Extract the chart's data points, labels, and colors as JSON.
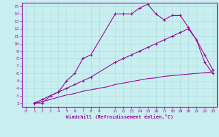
{
  "xlabel": "Windchill (Refroidissement éolien,°C)",
  "bg_color": "#c8eef0",
  "grid_color": "#b0dde0",
  "line_color": "#990099",
  "xlim": [
    -0.5,
    23.5
  ],
  "ylim": [
    1.5,
    15.5
  ],
  "xticks": [
    0,
    1,
    2,
    3,
    4,
    5,
    6,
    7,
    8,
    9,
    11,
    12,
    13,
    14,
    15,
    16,
    17,
    18,
    19,
    20,
    21,
    22,
    23
  ],
  "yticks": [
    2,
    3,
    4,
    5,
    6,
    7,
    8,
    9,
    10,
    11,
    12,
    13,
    14,
    15
  ],
  "line1_x": [
    1,
    2,
    3,
    4,
    5,
    6,
    7,
    8,
    11,
    12,
    13,
    14,
    15,
    16,
    17,
    18,
    19,
    20,
    21,
    22,
    23
  ],
  "line1_y": [
    2,
    2,
    3,
    3.5,
    5,
    6,
    8,
    8.5,
    14,
    14,
    14,
    14.8,
    15.3,
    14,
    13.2,
    13.8,
    13.8,
    12.2,
    10.5,
    7.5,
    6
  ],
  "line2_x": [
    1,
    2,
    3,
    4,
    5,
    6,
    7,
    8,
    11,
    12,
    13,
    14,
    15,
    16,
    17,
    18,
    19,
    20,
    21,
    22,
    23
  ],
  "line2_y": [
    2,
    2.5,
    3,
    3.5,
    4,
    4.5,
    5,
    5.5,
    7.5,
    8,
    8.5,
    9,
    9.5,
    10,
    10.5,
    11,
    11.5,
    12,
    10.5,
    8.5,
    6.5
  ],
  "line3_x": [
    1,
    2,
    3,
    4,
    5,
    6,
    7,
    8,
    9,
    10,
    11,
    12,
    13,
    14,
    15,
    16,
    17,
    18,
    19,
    20,
    21,
    22,
    23
  ],
  "line3_y": [
    2,
    2.2,
    2.5,
    2.8,
    3.1,
    3.3,
    3.6,
    3.8,
    4.0,
    4.2,
    4.5,
    4.7,
    4.9,
    5.1,
    5.3,
    5.4,
    5.6,
    5.7,
    5.8,
    5.9,
    6.0,
    6.1,
    6.2
  ]
}
